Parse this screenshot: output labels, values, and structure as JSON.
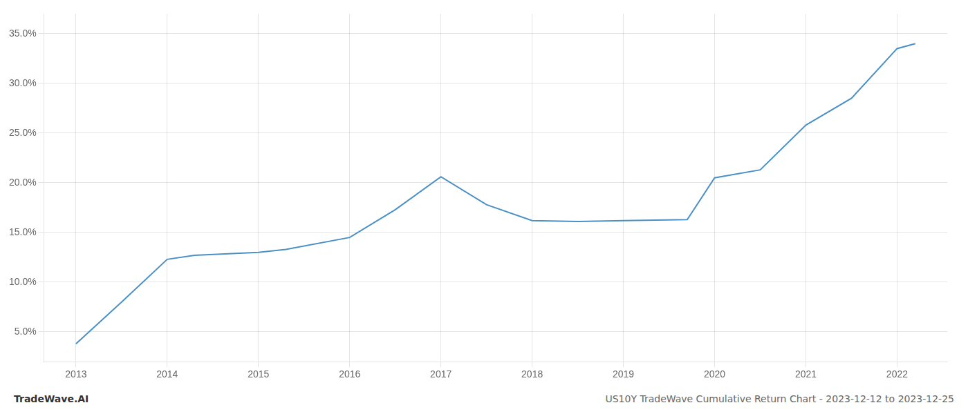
{
  "chart_data": {
    "type": "line",
    "title": "US10Y TradeWave Cumulative Return Chart - 2023-12-12 to 2023-12-25",
    "annotations": [
      "TradeWave.AI"
    ],
    "x": [
      2013,
      2013.5,
      2014,
      2014.3,
      2015,
      2015.3,
      2016,
      2016.5,
      2017,
      2017.5,
      2018,
      2018.5,
      2019,
      2019.7,
      2020,
      2020.5,
      2021,
      2021.5,
      2022,
      2022.2
    ],
    "values": [
      3.8,
      8.0,
      12.3,
      12.7,
      13.0,
      13.3,
      14.5,
      17.3,
      20.6,
      17.8,
      16.2,
      16.1,
      16.2,
      16.3,
      20.5,
      21.3,
      25.8,
      28.5,
      33.5,
      34.0
    ],
    "color": "#4a90c4",
    "xlim": [
      2012.65,
      2022.55
    ],
    "ylim": [
      2.0,
      37.0
    ],
    "xticks": [
      2013,
      2014,
      2015,
      2016,
      2017,
      2018,
      2019,
      2020,
      2021,
      2022
    ],
    "yticks": [
      {
        "value": 5.0,
        "label": "5.0%"
      },
      {
        "value": 10.0,
        "label": "10.0%"
      },
      {
        "value": 15.0,
        "label": "15.0%"
      },
      {
        "value": 20.0,
        "label": "20.0%"
      },
      {
        "value": 25.0,
        "label": "25.0%"
      },
      {
        "value": 30.0,
        "label": "30.0%"
      },
      {
        "value": 35.0,
        "label": "35.0%"
      }
    ],
    "grid": true
  }
}
